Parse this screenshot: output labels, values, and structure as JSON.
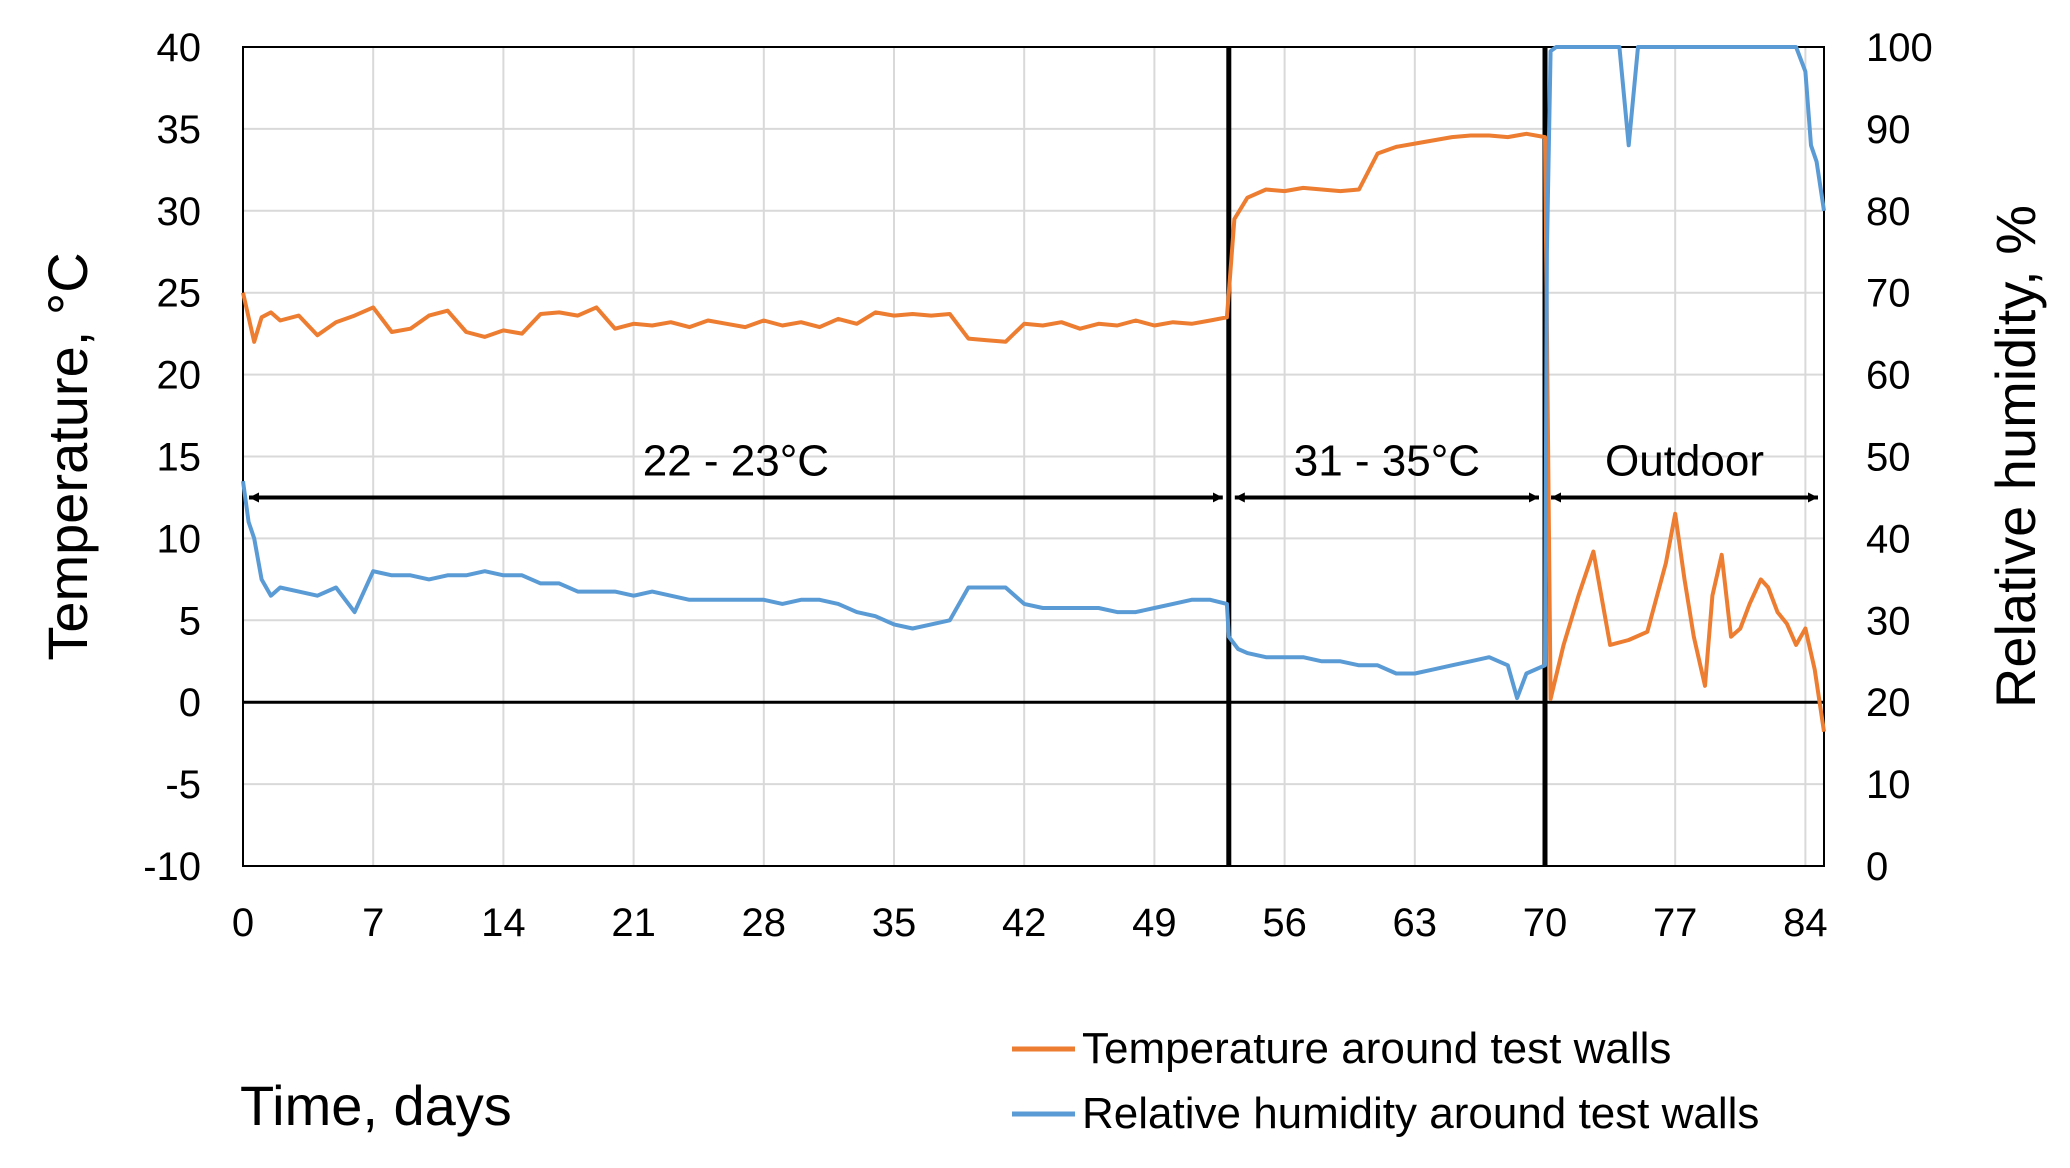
{
  "chart_data": {
    "type": "line",
    "xlabel": "Time, days",
    "ylabel_left": "Temperature, °C",
    "ylabel_right": "Relative humidity, %",
    "xlim": [
      0,
      85
    ],
    "ylim_left": [
      -10,
      40
    ],
    "ylim_right": [
      0,
      100
    ],
    "x_ticks": [
      "0",
      "7",
      "14",
      "21",
      "28",
      "35",
      "42",
      "49",
      "56",
      "63",
      "70",
      "77",
      "84"
    ],
    "y_left_ticks": [
      "-10",
      "-5",
      "0",
      "5",
      "10",
      "15",
      "20",
      "25",
      "30",
      "35",
      "40"
    ],
    "y_right_ticks": [
      "0",
      "10",
      "20",
      "30",
      "40",
      "50",
      "60",
      "70",
      "80",
      "90",
      "100"
    ],
    "grid": true,
    "phase_boundaries": [
      53,
      70
    ],
    "periods": [
      {
        "label": "22 - 23°C",
        "from": 0,
        "to": 53
      },
      {
        "label": "31 - 35°C",
        "from": 53,
        "to": 70
      },
      {
        "label": "Outdoor",
        "from": 70,
        "to": 85
      }
    ],
    "period_arrow_value": 12.5,
    "legend_position": "bottom-right",
    "series": [
      {
        "name": "Temperature around test walls",
        "color": "#ED7D31",
        "axis": "left",
        "x": [
          0,
          0.3,
          0.6,
          1,
          1.5,
          2,
          3,
          4,
          5,
          6,
          7,
          8,
          9,
          10,
          11,
          12,
          13,
          14,
          15,
          16,
          17,
          18,
          19,
          20,
          21,
          22,
          23,
          24,
          25,
          26,
          27,
          28,
          29,
          30,
          31,
          32,
          33,
          34,
          35,
          36,
          37,
          38,
          39,
          40,
          41,
          42,
          43,
          44,
          45,
          46,
          47,
          48,
          49,
          50,
          51,
          52,
          52.9,
          53,
          53.3,
          54,
          55,
          56,
          57,
          58,
          59,
          60,
          61,
          62,
          63,
          64,
          65,
          66,
          67,
          68,
          69,
          70,
          70.3,
          71,
          71.8,
          72.6,
          73.5,
          74.5,
          75.5,
          76.5,
          77,
          77.5,
          78,
          78.6,
          79,
          79.5,
          80,
          80.5,
          81,
          81.6,
          82,
          82.5,
          83,
          83.5,
          84,
          84.5,
          85
        ],
        "values": [
          25,
          23.5,
          22,
          23.5,
          23.8,
          23.3,
          23.6,
          22.4,
          23.2,
          23.6,
          24.1,
          22.6,
          22.8,
          23.6,
          23.9,
          22.6,
          22.3,
          22.7,
          22.5,
          23.7,
          23.8,
          23.6,
          24.1,
          22.8,
          23.1,
          23.0,
          23.2,
          22.9,
          23.3,
          23.1,
          22.9,
          23.3,
          23.0,
          23.2,
          22.9,
          23.4,
          23.1,
          23.8,
          23.6,
          23.7,
          23.6,
          23.7,
          22.2,
          22.1,
          22.0,
          23.1,
          23.0,
          23.2,
          22.8,
          23.1,
          23.0,
          23.3,
          23.0,
          23.2,
          23.1,
          23.3,
          23.5,
          25,
          29.5,
          30.8,
          31.3,
          31.2,
          31.4,
          31.3,
          31.2,
          31.3,
          33.5,
          33.9,
          34.1,
          34.3,
          34.5,
          34.6,
          34.6,
          34.5,
          34.7,
          34.5,
          0.2,
          3.5,
          6.5,
          9.2,
          3.5,
          3.8,
          4.3,
          8.5,
          11.5,
          7.5,
          4.0,
          1.0,
          6.5,
          9.0,
          4.0,
          4.5,
          6.0,
          7.5,
          7.0,
          5.5,
          4.8,
          3.5,
          4.5,
          2.0,
          -1.8
        ]
      },
      {
        "name": "Relative humidity around test walls",
        "color": "#5B9BD5",
        "axis": "right",
        "x": [
          0,
          0.3,
          0.6,
          1,
          1.5,
          2,
          3,
          4,
          5,
          6,
          7,
          8,
          9,
          10,
          11,
          12,
          13,
          14,
          15,
          16,
          17,
          18,
          19,
          20,
          21,
          22,
          23,
          24,
          25,
          26,
          27,
          28,
          29,
          30,
          31,
          32,
          33,
          34,
          35,
          36,
          37,
          38,
          39,
          40,
          41,
          42,
          43,
          44,
          45,
          46,
          47,
          48,
          49,
          50,
          51,
          52,
          52.9,
          53,
          53.5,
          54,
          55,
          56,
          57,
          58,
          59,
          60,
          61,
          62,
          63,
          64,
          65,
          66,
          67,
          68,
          68.5,
          69,
          70,
          70.1,
          70.3,
          70.6,
          71,
          72,
          73,
          74,
          74.5,
          75,
          76,
          77,
          78,
          79,
          80,
          81,
          82,
          83,
          83.5,
          84,
          84.3,
          84.6,
          85
        ],
        "values": [
          47,
          42,
          40,
          35,
          33,
          34,
          33.5,
          33,
          34,
          31,
          36,
          35.5,
          35.5,
          35,
          35.5,
          35.5,
          36,
          35.5,
          35.5,
          34.5,
          34.5,
          33.5,
          33.5,
          33.5,
          33,
          33.5,
          33,
          32.5,
          32.5,
          32.5,
          32.5,
          32.5,
          32,
          32.5,
          32.5,
          32,
          31,
          30.5,
          29.5,
          29,
          29.5,
          30,
          34,
          34,
          34,
          32,
          31.5,
          31.5,
          31.5,
          31.5,
          31,
          31,
          31.5,
          32,
          32.5,
          32.5,
          32,
          28,
          26.5,
          26,
          25.5,
          25.5,
          25.5,
          25,
          25,
          24.5,
          24.5,
          23.5,
          23.5,
          24,
          24.5,
          25,
          25.5,
          24.5,
          20.5,
          23.5,
          24.5,
          75,
          99.5,
          100,
          100,
          100,
          100,
          100,
          88,
          100,
          100,
          100,
          100,
          100,
          100,
          100,
          100,
          100,
          100,
          97,
          88,
          86,
          80
        ]
      }
    ]
  }
}
